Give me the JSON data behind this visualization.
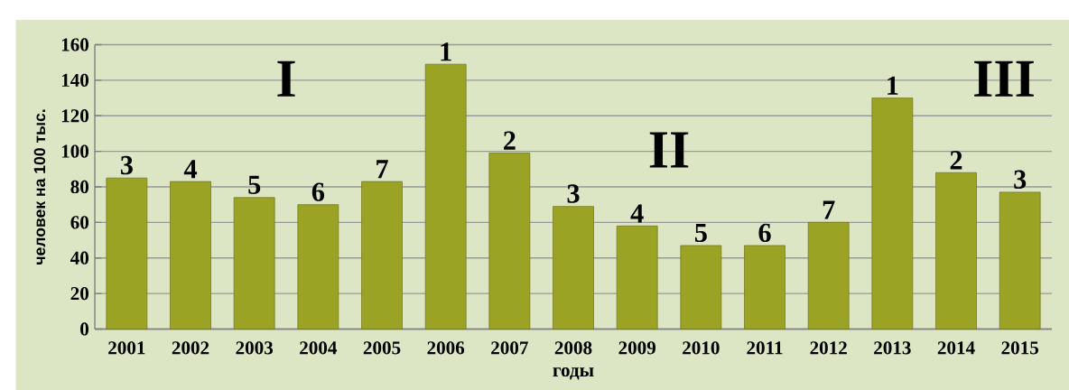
{
  "chart_data": {
    "type": "bar",
    "ylabel": "человек на 100 тыс.",
    "xlabel": "годы",
    "categories": [
      "2001",
      "2002",
      "2003",
      "2004",
      "2005",
      "2006",
      "2007",
      "2008",
      "2009",
      "2010",
      "2011",
      "2012",
      "2013",
      "2014",
      "2015"
    ],
    "values": [
      85,
      83,
      74,
      70,
      83,
      149,
      99,
      69,
      58,
      47,
      47,
      60,
      130,
      88,
      77
    ],
    "color": "#9aa323",
    "annotations": [
      "I",
      "II",
      "III",
      {
        "text": "3",
        "x": "2001",
        "y": 85
      },
      {
        "text": "4",
        "x": "2002",
        "y": 83
      },
      {
        "text": "5",
        "x": "2003",
        "y": 74
      },
      {
        "text": "6",
        "x": "2004",
        "y": 70
      },
      {
        "text": "7",
        "x": "2005",
        "y": 83
      },
      {
        "text": "1",
        "x": "2006",
        "y": 149
      },
      {
        "text": "2",
        "x": "2007",
        "y": 99
      },
      {
        "text": "3",
        "x": "2008",
        "y": 69
      },
      {
        "text": "4",
        "x": "2009",
        "y": 58
      },
      {
        "text": "5",
        "x": "2010",
        "y": 47
      },
      {
        "text": "6",
        "x": "2011",
        "y": 47
      },
      {
        "text": "7",
        "x": "2012",
        "y": 60
      },
      {
        "text": "1",
        "x": "2013",
        "y": 130
      },
      {
        "text": "2",
        "x": "2014",
        "y": 88
      },
      {
        "text": "3",
        "x": "2015",
        "y": 77
      }
    ],
    "ylim": [
      0,
      160
    ],
    "yticks": [
      0,
      20,
      40,
      60,
      80,
      100,
      120,
      140,
      160
    ],
    "grid": "y"
  }
}
